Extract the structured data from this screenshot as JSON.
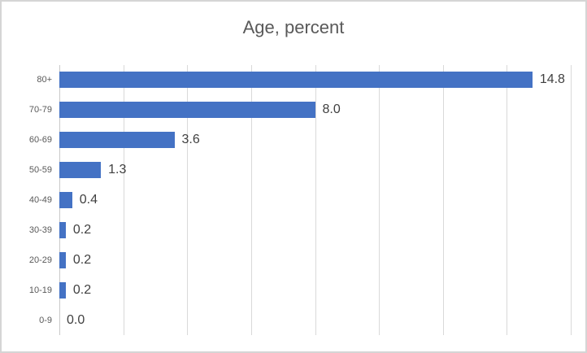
{
  "window": {
    "background_color": "#ffffff",
    "border_color": "#d5d5d5"
  },
  "chart_data": {
    "type": "bar",
    "orientation": "horizontal",
    "title": "Age, percent",
    "categories": [
      "80+",
      "70-79",
      "60-69",
      "50-59",
      "40-49",
      "30-39",
      "20-29",
      "10-19",
      "0-9"
    ],
    "values": [
      14.8,
      8.0,
      3.6,
      1.3,
      0.4,
      0.2,
      0.2,
      0.2,
      0.0
    ],
    "data_labels": [
      "14.8",
      "8.0",
      "3.6",
      "1.3",
      "0.4",
      "0.2",
      "0.2",
      "0.2",
      "0.0"
    ],
    "xlabel": "",
    "ylabel": "",
    "xlim": [
      0,
      16
    ],
    "gridline_interval": 2,
    "grid": "vertical-gridlines-only",
    "axis_tick_labels": "none",
    "legend": "none",
    "bar_color": "#4472c4",
    "gridline_color": "#d9d9d9",
    "axis_line_color": "#c9c9c9",
    "title_color": "#595959",
    "category_label_color": "#595959",
    "data_label_color": "#404040"
  }
}
